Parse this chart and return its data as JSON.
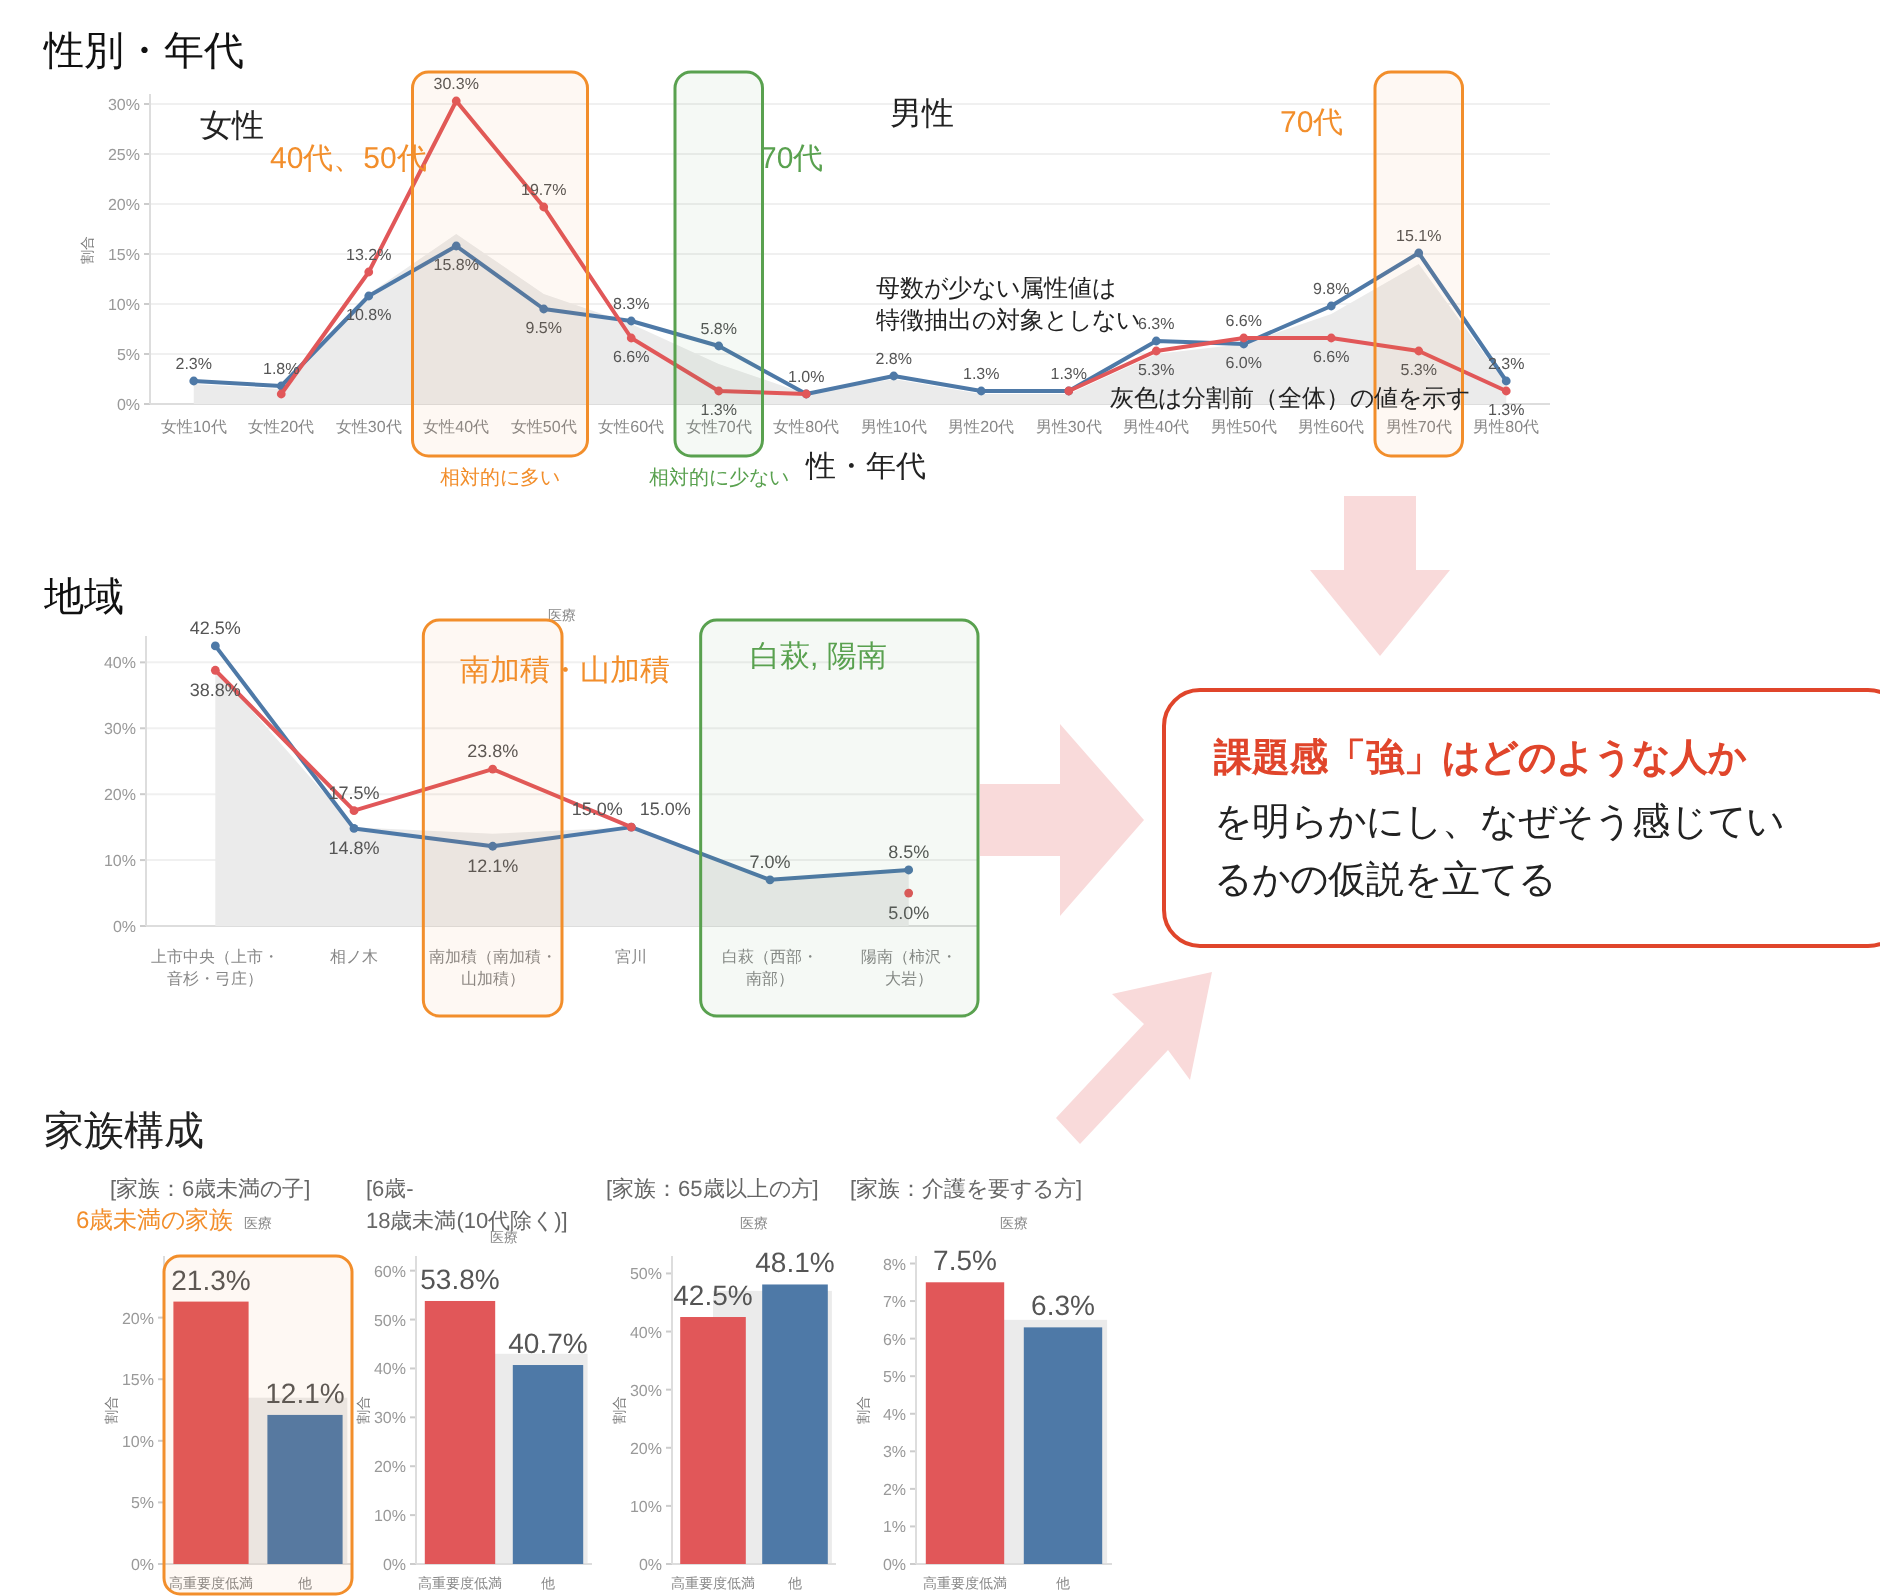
{
  "chart_data": [
    {
      "type": "line",
      "title": "性別・年代",
      "xlabel": "性・年代",
      "ylabel": "割合",
      "categories": [
        "女性10代",
        "女性20代",
        "女性30代",
        "女性40代",
        "女性50代",
        "女性60代",
        "女性70代",
        "女性80代",
        "男性10代",
        "男性20代",
        "男性30代",
        "男性40代",
        "男性50代",
        "男性60代",
        "男性70代",
        "男性80代"
      ],
      "series": [
        {
          "type": "area",
          "color": "#ebebeb",
          "values": [
            2,
            1.5,
            11,
            17,
            11,
            8,
            4,
            1,
            2.5,
            1,
            1,
            5,
            6,
            9,
            14,
            2
          ]
        },
        {
          "color": "#4e79a7",
          "marker": "circle",
          "values": [
            2.3,
            1.8,
            10.8,
            15.8,
            9.5,
            8.3,
            5.8,
            1.0,
            2.8,
            1.3,
            1.3,
            6.3,
            6.0,
            9.8,
            15.1,
            2.3
          ],
          "value_labels": [
            "2.3%",
            "1.8%",
            "10.8%",
            "15.8%",
            "9.5%",
            "8.3%",
            "5.8%",
            "1.0%",
            "2.8%",
            "1.3%",
            "1.3%",
            "6.3%",
            "6.0%",
            "9.8%",
            "15.1%",
            "2.3%"
          ]
        },
        {
          "color": "#e15759",
          "marker": "circle",
          "values": [
            null,
            1.0,
            13.2,
            30.3,
            19.7,
            6.6,
            1.3,
            1.0,
            null,
            null,
            1.3,
            5.3,
            6.6,
            6.6,
            5.3,
            1.3
          ],
          "value_labels": [
            null,
            null,
            "13.2%",
            "30.3%",
            "19.7%",
            "6.6%",
            "1.3%",
            null,
            null,
            null,
            null,
            "5.3%",
            "6.6%",
            "6.6%",
            "5.3%",
            "1.3%"
          ]
        }
      ],
      "ylim": [
        0,
        31
      ],
      "yticks": [
        {
          "value": 0,
          "label": "0%"
        },
        {
          "value": 5,
          "label": "5%"
        },
        {
          "value": 10,
          "label": "10%"
        },
        {
          "value": 15,
          "label": "15%"
        },
        {
          "value": 20,
          "label": "20%"
        },
        {
          "value": 25,
          "label": "25%"
        },
        {
          "value": 30,
          "label": "30%"
        }
      ],
      "grid": "y",
      "bands": [
        {
          "axis": "x",
          "from": "女性40代",
          "to": "女性50代",
          "label": "相対的に多い",
          "color": "#f28e2b"
        },
        {
          "axis": "x",
          "from": "女性70代",
          "to": "女性70代",
          "label": "相対的に少ない",
          "color": "#59a14f"
        },
        {
          "axis": "x",
          "from": "男性70代",
          "to": "男性70代",
          "color": "#f28e2b"
        }
      ],
      "annotations": [
        "女性",
        "男性",
        "40代、50代",
        "70代",
        "70代",
        "母数が少ない属性値は特徴抽出の対象としない",
        "灰色は分割前（全体）の値を示す"
      ]
    },
    {
      "type": "line",
      "title": "地域",
      "subtitle": "医療",
      "categories": [
        "上市中央（上市・音杉・弓庄）",
        "相ノ木",
        "南加積（南加積・山加積）",
        "宮川",
        "白萩（西部・南部）",
        "陽南（柿沢・大岩）"
      ],
      "series": [
        {
          "type": "area",
          "color": "#ebebeb",
          "values": [
            39,
            15,
            14,
            15,
            7,
            8.5
          ]
        },
        {
          "color": "#4e79a7",
          "marker": "circle",
          "values": [
            42.5,
            14.8,
            12.1,
            15.0,
            7.0,
            8.5
          ],
          "value_labels": [
            "42.5%",
            "14.8%",
            "12.1%",
            "15.0%",
            "7.0%",
            "8.5%"
          ]
        },
        {
          "color": "#e15759",
          "marker": "circle",
          "values": [
            38.8,
            17.5,
            23.8,
            15.0,
            null,
            5.0
          ],
          "value_labels": [
            "38.8%",
            "17.5%",
            "23.8%",
            "15.0%",
            null,
            "5.0%"
          ]
        }
      ],
      "ylim": [
        0,
        44
      ],
      "yticks": [
        {
          "value": 0,
          "label": "0%"
        },
        {
          "value": 10,
          "label": "10%"
        },
        {
          "value": 20,
          "label": "20%"
        },
        {
          "value": 30,
          "label": "30%"
        },
        {
          "value": 40,
          "label": "40%"
        }
      ],
      "grid": "y",
      "bands": [
        {
          "axis": "x",
          "from": "南加積（南加積・山加積）",
          "to": "南加積（南加積・山加積）",
          "color": "#f28e2b"
        },
        {
          "axis": "x",
          "from": "白萩（西部・南部）",
          "to": "陽南（柿沢・大岩）",
          "color": "#59a14f"
        }
      ],
      "annotations": [
        "南加積・山加積",
        "白萩, 陽南"
      ]
    },
    {
      "type": "bar",
      "title": "[家族：6歳未満の子]",
      "subtitle": "医療",
      "ylabel": "割合",
      "categories": [
        "高重要度低満",
        "他"
      ],
      "values": [
        21.3,
        12.1
      ],
      "colors": [
        "#e15759",
        "#4e79a7"
      ],
      "value_labels": [
        "21.3%",
        "12.1%"
      ],
      "ylim": [
        0,
        25
      ],
      "yticks": [
        {
          "value": 0,
          "label": "0%"
        },
        {
          "value": 5,
          "label": "5%"
        },
        {
          "value": 10,
          "label": "10%"
        },
        {
          "value": 15,
          "label": "15%"
        },
        {
          "value": 20,
          "label": "20%"
        }
      ],
      "bands": [
        {
          "axis": "y",
          "from": 0,
          "to": 13.5,
          "color": "#ebebeb"
        },
        {
          "axis": "x",
          "from": "高重要度低満",
          "to": "他",
          "color": "#f28e2b"
        }
      ],
      "annotations": [
        "家族構成",
        "6歳未満の家族"
      ]
    },
    {
      "type": "bar",
      "title": "[6歳-18歳未満(10代除く)]",
      "subtitle": "医療",
      "ylabel": "割合",
      "categories": [
        "高重要度低満",
        "他"
      ],
      "values": [
        53.8,
        40.7
      ],
      "colors": [
        "#e15759",
        "#4e79a7"
      ],
      "value_labels": [
        "53.8%",
        "40.7%"
      ],
      "ylim": [
        0,
        63
      ],
      "yticks": [
        {
          "value": 0,
          "label": "0%"
        },
        {
          "value": 10,
          "label": "10%"
        },
        {
          "value": 20,
          "label": "20%"
        },
        {
          "value": 30,
          "label": "30%"
        },
        {
          "value": 40,
          "label": "40%"
        },
        {
          "value": 50,
          "label": "50%"
        },
        {
          "value": 60,
          "label": "60%"
        }
      ],
      "bands": [
        {
          "axis": "y",
          "from": 0,
          "to": 43,
          "color": "#ebebeb"
        }
      ]
    },
    {
      "type": "bar",
      "title": "[家族：65歳以上の方]",
      "subtitle": "医療",
      "ylabel": "割合",
      "categories": [
        "高重要度低満",
        "他"
      ],
      "values": [
        42.5,
        48.1
      ],
      "colors": [
        "#e15759",
        "#4e79a7"
      ],
      "value_labels": [
        "42.5%",
        "48.1%"
      ],
      "ylim": [
        0,
        53
      ],
      "yticks": [
        {
          "value": 0,
          "label": "0%"
        },
        {
          "value": 10,
          "label": "10%"
        },
        {
          "value": 20,
          "label": "20%"
        },
        {
          "value": 30,
          "label": "30%"
        },
        {
          "value": 40,
          "label": "40%"
        },
        {
          "value": 50,
          "label": "50%"
        }
      ],
      "bands": [
        {
          "axis": "y",
          "from": 0,
          "to": 47,
          "color": "#ebebeb"
        }
      ]
    },
    {
      "type": "bar",
      "title": "[家族：介護を要する方]",
      "subtitle": "医療",
      "ylabel": "割合",
      "categories": [
        "高重要度低満",
        "他"
      ],
      "values": [
        7.5,
        6.3
      ],
      "colors": [
        "#e15759",
        "#4e79a7"
      ],
      "value_labels": [
        "7.5%",
        "6.3%"
      ],
      "ylim": [
        0,
        8.2
      ],
      "yticks": [
        {
          "value": 0,
          "label": "0%"
        },
        {
          "value": 1,
          "label": "1%"
        },
        {
          "value": 2,
          "label": "2%"
        },
        {
          "value": 3,
          "label": "3%"
        },
        {
          "value": 4,
          "label": "4%"
        },
        {
          "value": 5,
          "label": "5%"
        },
        {
          "value": 6,
          "label": "6%"
        },
        {
          "value": 7,
          "label": "7%"
        },
        {
          "value": 8,
          "label": "8%"
        }
      ],
      "bands": [
        {
          "axis": "y",
          "from": 0,
          "to": 6.5,
          "color": "#ebebeb"
        }
      ]
    },
    {
      "type": "other",
      "title": "課題感「強」はどのような人か",
      "subtitle": "を明らかにし、なぜそう感じているかの仮説を立てる"
    }
  ]
}
